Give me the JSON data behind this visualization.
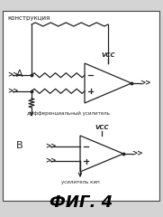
{
  "title": "ФИГ. 4",
  "label_A": "A",
  "label_B": "B",
  "label_construction": "конструкция",
  "label_diff_amp": "дифференциальный усилитель",
  "label_chip_amp": "усилитель кип",
  "label_vcc": "VCC",
  "bg_color": "#d4d4d4",
  "border_color": "#444444",
  "line_color": "#222222",
  "fig_width": 1.81,
  "fig_height": 2.4,
  "dpi": 100
}
